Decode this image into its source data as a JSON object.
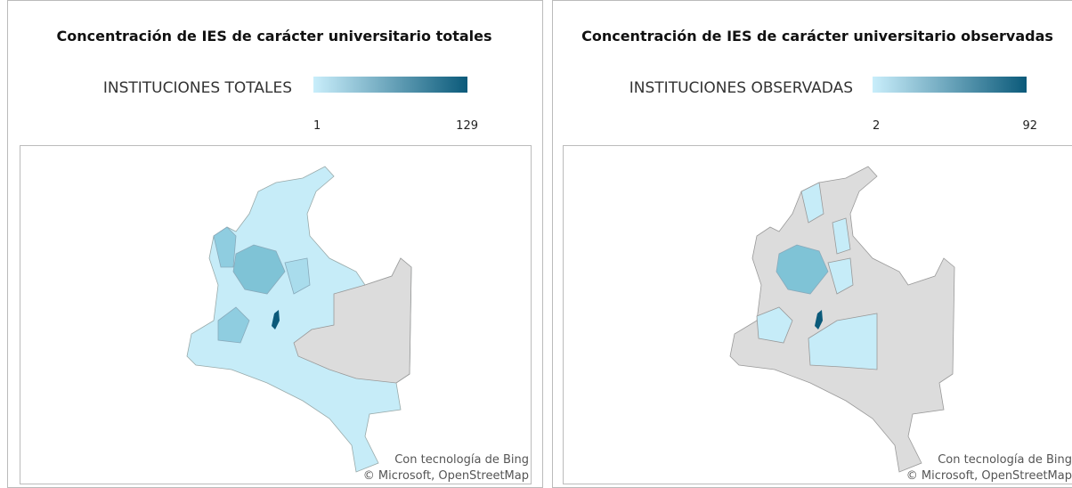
{
  "panels": [
    {
      "title": "Concentración de IES de carácter universitario totales",
      "legend": {
        "label": "INSTITUCIONES TOTALES",
        "min": 1,
        "max": 129
      },
      "attribution": [
        "Con tecnología de Bing",
        "© Microsoft, OpenStreetMap"
      ]
    },
    {
      "title": "Concentración de IES de carácter universitario observadas",
      "legend": {
        "label": "INSTITUCIONES OBSERVADAS",
        "min": 2,
        "max": 92
      },
      "attribution": [
        "Con tecnología de Bing",
        "© Microsoft, OpenStreetMap"
      ]
    }
  ]
}
